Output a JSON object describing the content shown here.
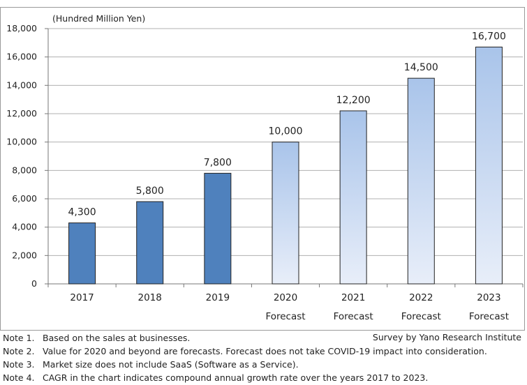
{
  "chart_data": {
    "type": "bar",
    "unit_label": "(Hundred Million Yen)",
    "categories": [
      "2017",
      "2018",
      "2019",
      "2020",
      "2021",
      "2022",
      "2023"
    ],
    "sublabels": [
      "",
      "",
      "",
      "Forecast",
      "Forecast",
      "Forecast",
      "Forecast"
    ],
    "values": [
      4300,
      5800,
      7800,
      10000,
      12200,
      14500,
      16700
    ],
    "value_labels": [
      "4,300",
      "5,800",
      "7,800",
      "10,000",
      "12,200",
      "14,500",
      "16,700"
    ],
    "forecast_flags": [
      false,
      false,
      false,
      true,
      true,
      true,
      true
    ],
    "ylim": [
      0,
      18000
    ],
    "yticks": [
      "0",
      "2,000",
      "4,000",
      "6,000",
      "8,000",
      "10,000",
      "12,000",
      "14,000",
      "16,000",
      "18,000"
    ],
    "ytick_values": [
      0,
      2000,
      4000,
      6000,
      8000,
      10000,
      12000,
      14000,
      16000,
      18000
    ],
    "grid": true,
    "colors": {
      "actual": "#4f81bd",
      "forecast_top": "#a9c4ea",
      "forecast_bottom": "#e8eef9",
      "grid": "#b0b0b0",
      "axis": "#777777"
    }
  },
  "survey": "Survey by Yano Research Institute",
  "notes": [
    {
      "label": "Note 1.",
      "text": "Based on the sales at businesses."
    },
    {
      "label": "Note 2.",
      "text": "Value for 2020 and beyond are forecasts. Forecast does not take COVID-19 impact into consideration."
    },
    {
      "label": "Note 3.",
      "text": "Market size does not include SaaS (Software as a Service)."
    },
    {
      "label": "Note 4.",
      "text": "CAGR in the chart indicates compound annual growth rate over the years 2017 to 2023."
    }
  ]
}
